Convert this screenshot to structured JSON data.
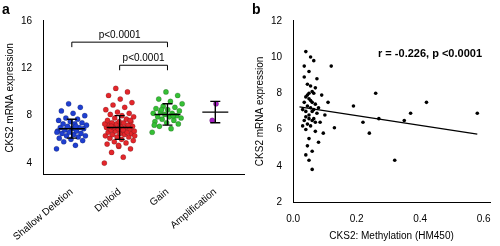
{
  "chart_data": [
    {
      "type": "strip",
      "title": "a",
      "y_label": "CKS2 mRNA expression",
      "categories": [
        "Shallow Deletion",
        "Diploid",
        "Gain",
        "Amplification"
      ],
      "colors": [
        "#1f3fd0",
        "#e3262b",
        "#35bf35",
        "#a51fc2"
      ],
      "values": [
        [
          5.2,
          5.5,
          5.8,
          5.9,
          6.0,
          6.1,
          6.2,
          6.3,
          6.3,
          6.4,
          6.5,
          6.5,
          6.6,
          6.7,
          6.7,
          6.8,
          6.9,
          6.9,
          7.0,
          7.0,
          7.1,
          7.2,
          7.3,
          7.3,
          7.4,
          7.5,
          7.6,
          7.7,
          7.8,
          8.0,
          8.2,
          8.4,
          8.7,
          9.0,
          6.6,
          7.1
        ],
        [
          4.0,
          4.5,
          4.9,
          5.2,
          5.4,
          5.6,
          5.7,
          5.8,
          5.9,
          6.0,
          6.1,
          6.2,
          6.2,
          6.3,
          6.4,
          6.4,
          6.5,
          6.5,
          6.6,
          6.6,
          6.7,
          6.7,
          6.8,
          6.8,
          6.9,
          6.9,
          7.0,
          7.0,
          7.0,
          7.1,
          7.1,
          7.2,
          7.2,
          7.3,
          7.3,
          7.4,
          7.4,
          7.5,
          7.5,
          7.6,
          7.7,
          7.8,
          7.9,
          8.0,
          8.1,
          8.2,
          8.3,
          8.5,
          8.7,
          8.9,
          9.1,
          9.4,
          9.7,
          10.0,
          10.3,
          6.3,
          6.8,
          7.1,
          7.6,
          5.5
        ],
        [
          6.6,
          6.9,
          7.1,
          7.3,
          7.4,
          7.5,
          7.6,
          7.7,
          7.8,
          7.9,
          7.9,
          8.0,
          8.1,
          8.2,
          8.2,
          8.3,
          8.4,
          8.5,
          8.6,
          8.7,
          8.8,
          9.0,
          9.2,
          9.4,
          9.7,
          10.0,
          7.2,
          8.0,
          8.5
        ],
        [
          7.6,
          9.0
        ]
      ],
      "mean": [
        6.9,
        7.0,
        8.1,
        8.3
      ],
      "sd": [
        0.8,
        1.0,
        0.9,
        0.9
      ],
      "annotations": [
        {
          "text": "p<0.0001",
          "from": "Diploid",
          "to": "Gain"
        },
        {
          "text": "p<0.0001",
          "from": "Shallow Deletion",
          "to": "Gain"
        }
      ],
      "ylim": [
        3,
        16
      ],
      "yticks": [
        4,
        8,
        12,
        16
      ],
      "grid": false
    },
    {
      "type": "scatter",
      "title": "b",
      "x_label": "CKS2: Methylation (HM450)",
      "y_label": "CKS2 mRNA expression",
      "color": "#000000",
      "x": [
        0.03,
        0.035,
        0.04,
        0.04,
        0.045,
        0.045,
        0.05,
        0.05,
        0.05,
        0.055,
        0.055,
        0.06,
        0.06,
        0.06,
        0.065,
        0.065,
        0.07,
        0.07,
        0.075,
        0.075,
        0.08,
        0.08,
        0.085,
        0.09,
        0.035,
        0.04,
        0.045,
        0.05,
        0.055,
        0.06,
        0.03,
        0.035,
        0.04,
        0.045,
        0.05,
        0.055,
        0.06,
        0.065,
        0.07,
        0.1,
        0.11,
        0.095,
        0.12,
        0.13,
        0.19,
        0.22,
        0.24,
        0.26,
        0.27,
        0.32,
        0.35,
        0.37,
        0.42,
        0.58,
        0.045,
        0.05,
        0.055,
        0.06,
        0.04,
        0.065,
        0.05,
        0.07,
        0.035,
        0.04
      ],
      "values": [
        7.1,
        6.5,
        7.8,
        6.0,
        8.5,
        7.3,
        6.8,
        9.2,
        5.5,
        7.6,
        6.2,
        8.1,
        7.0,
        4.8,
        6.6,
        9.8,
        7.4,
        5.9,
        8.8,
        6.9,
        7.2,
        5.3,
        6.4,
        7.9,
        8.9,
        10.3,
        5.1,
        4.3,
        10.0,
        3.8,
        6.2,
        7.5,
        7.0,
        6.3,
        7.7,
        8.4,
        6.5,
        7.1,
        8.3,
        6.8,
        7.5,
        5.8,
        9.5,
        6.1,
        7.3,
        6.4,
        5.8,
        8.0,
        6.6,
        4.3,
        6.5,
        6.9,
        7.5,
        6.9,
        7.9,
        6.6,
        7.2,
        7.5,
        6.7,
        8.0,
        8.0,
        6.4,
        9.5,
        4.6
      ],
      "fit_line": {
        "x": [
          0.02,
          0.58
        ],
        "y": [
          7.25,
          5.75
        ]
      },
      "annotation": "r = -0.226, p <0.0001",
      "xlim": [
        0,
        0.62
      ],
      "xticks": [
        {
          "value": 0,
          "label": "0.0"
        },
        {
          "value": 0.2,
          "label": "0.2"
        },
        {
          "value": 0.4,
          "label": "0.4"
        },
        {
          "value": 0.6,
          "label": "0.6"
        }
      ],
      "ylim": [
        2,
        12
      ],
      "yticks": [
        2,
        4,
        6,
        8,
        10,
        12
      ],
      "grid": false
    }
  ]
}
